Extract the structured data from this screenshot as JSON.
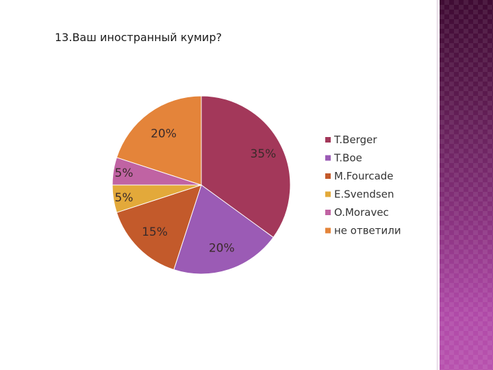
{
  "slide": {
    "title": "13.Ваш иностранный кумир?"
  },
  "chart_data": {
    "type": "pie",
    "title": "",
    "categories": [
      "T.Berger",
      "T.Boe",
      "M.Fourcade",
      "E.Svendsen",
      "O.Moravec",
      "не ответили"
    ],
    "values": [
      35,
      20,
      15,
      5,
      5,
      20
    ],
    "labels": [
      "35%",
      "20%",
      "15%",
      "5%",
      "5%",
      "20%"
    ],
    "colors": [
      "#a3385a",
      "#9b5bb5",
      "#c35a2b",
      "#e3a93a",
      "#c063a3",
      "#e4843a"
    ],
    "legend_position": "right",
    "start_angle_deg": 0,
    "direction": "clockwise"
  }
}
